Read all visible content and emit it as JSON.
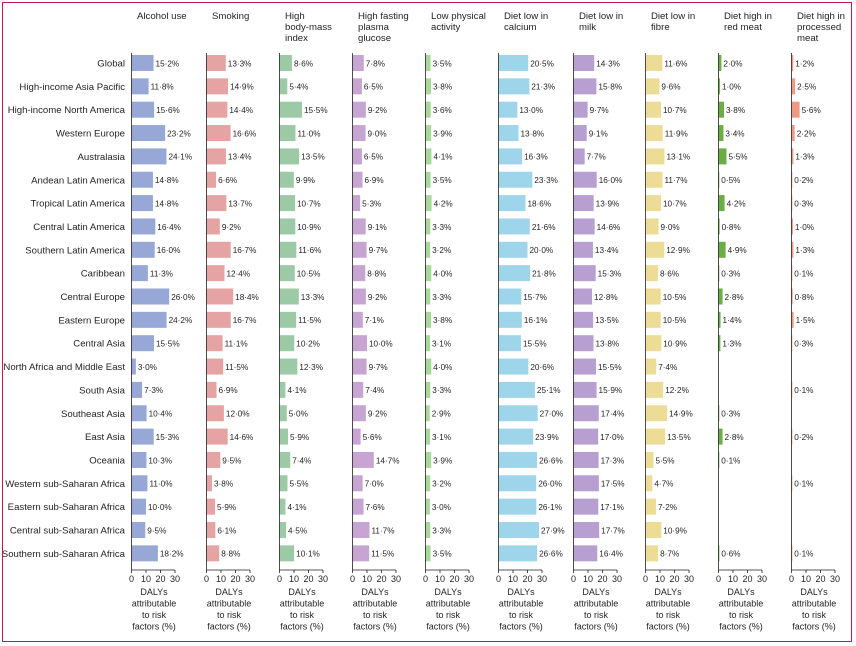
{
  "chart_data": {
    "type": "bar",
    "orientation": "horizontal",
    "layout": "small-multiples",
    "categories": [
      "Global",
      "High-income Asia Pacific",
      "High-income North America",
      "Western Europe",
      "Australasia",
      "Andean Latin America",
      "Tropical Latin America",
      "Central Latin America",
      "Southern Latin America",
      "Caribbean",
      "Central Europe",
      "Eastern Europe",
      "Central Asia",
      "North Africa and Middle East",
      "South Asia",
      "Southeast Asia",
      "East Asia",
      "Oceania",
      "Western sub-Saharan Africa",
      "Eastern sub-Saharan Africa",
      "Central sub-Saharan Africa",
      "Southern sub-Saharan Africa"
    ],
    "xlim": [
      0,
      30
    ],
    "xticks": [
      "0",
      "10",
      "20",
      "30"
    ],
    "xlabel": [
      "DALYs",
      "attributable",
      "to risk",
      "factors (%)"
    ],
    "series": [
      {
        "name": "Alcohol use",
        "title_lines": [
          "Alcohol use"
        ],
        "color": "#97a8d6",
        "values": [
          15.2,
          11.8,
          15.6,
          23.2,
          24.1,
          14.8,
          14.8,
          16.4,
          16.0,
          11.3,
          26.0,
          24.2,
          15.5,
          3.0,
          7.3,
          10.4,
          15.3,
          10.3,
          11.0,
          10.0,
          9.5,
          18.2
        ],
        "labels": [
          "15·2%",
          "11·8%",
          "15·6%",
          "23·2%",
          "24·1%",
          "14·8%",
          "14·8%",
          "16·4%",
          "16·0%",
          "11·3%",
          "26·0%",
          "24·2%",
          "15·5%",
          "3·0%",
          "7·3%",
          "10·4%",
          "15·3%",
          "10·3%",
          "11·0%",
          "10·0%",
          "9·5%",
          "18·2%"
        ]
      },
      {
        "name": "Smoking",
        "title_lines": [
          "Smoking"
        ],
        "color": "#e6a3a3",
        "values": [
          13.3,
          14.9,
          14.4,
          16.6,
          13.4,
          6.6,
          13.7,
          9.2,
          16.7,
          12.4,
          18.4,
          16.7,
          11.1,
          11.5,
          6.9,
          12.0,
          14.6,
          9.5,
          3.8,
          5.9,
          6.1,
          8.8
        ],
        "labels": [
          "13·3%",
          "14·9%",
          "14·4%",
          "16·6%",
          "13·4%",
          "6·6%",
          "13·7%",
          "9·2%",
          "16·7%",
          "12·4%",
          "18·4%",
          "16·7%",
          "11·1%",
          "11·5%",
          "6·9%",
          "12·0%",
          "14·6%",
          "9·5%",
          "3·8%",
          "5·9%",
          "6·1%",
          "8·8%"
        ]
      },
      {
        "name": "High body-mass index",
        "title_lines": [
          "High",
          "body-mass",
          "index"
        ],
        "color": "#9dcaa6",
        "values": [
          8.6,
          5.4,
          15.5,
          11.0,
          13.5,
          9.9,
          10.7,
          10.9,
          11.6,
          10.5,
          13.3,
          11.5,
          10.2,
          12.3,
          4.1,
          5.0,
          5.9,
          7.4,
          5.5,
          4.1,
          4.5,
          10.1
        ],
        "labels": [
          "8·6%",
          "5·4%",
          "15·5%",
          "11·0%",
          "13·5%",
          "9·9%",
          "10·7%",
          "10·9%",
          "11·6%",
          "10·5%",
          "13·3%",
          "11·5%",
          "10·2%",
          "12·3%",
          "4·1%",
          "5·0%",
          "5·9%",
          "7·4%",
          "5·5%",
          "4·1%",
          "4·5%",
          "10·1%"
        ]
      },
      {
        "name": "High fasting plasma glucose",
        "title_lines": [
          "High fasting",
          "plasma",
          "glucose"
        ],
        "color": "#c7a5d3",
        "values": [
          7.8,
          6.5,
          9.2,
          9.0,
          6.5,
          6.9,
          5.3,
          9.1,
          9.7,
          8.8,
          9.2,
          7.1,
          10.0,
          9.7,
          7.4,
          9.2,
          5.6,
          14.7,
          7.0,
          7.6,
          11.7,
          11.5
        ],
        "labels": [
          "7·8%",
          "6·5%",
          "9·2%",
          "9·0%",
          "6·5%",
          "6·9%",
          "5·3%",
          "9·1%",
          "9·7%",
          "8·8%",
          "9·2%",
          "7·1%",
          "10·0%",
          "9·7%",
          "7·4%",
          "9·2%",
          "5·6%",
          "14·7%",
          "7·0%",
          "7·6%",
          "11·7%",
          "11·5%"
        ]
      },
      {
        "name": "Low physical activity",
        "title_lines": [
          "Low physical",
          "activity"
        ],
        "color": "#a9d99a",
        "values": [
          3.5,
          3.8,
          3.6,
          3.9,
          4.1,
          3.5,
          4.2,
          3.3,
          3.2,
          4.0,
          3.3,
          3.8,
          3.1,
          4.0,
          3.3,
          2.9,
          3.1,
          3.9,
          3.2,
          3.0,
          3.3,
          3.5
        ],
        "labels": [
          "3·5%",
          "3·8%",
          "3·6%",
          "3·9%",
          "4·1%",
          "3·5%",
          "4·2%",
          "3·3%",
          "3·2%",
          "4·0%",
          "3·3%",
          "3·8%",
          "3·1%",
          "4·0%",
          "3·3%",
          "2·9%",
          "3·1%",
          "3·9%",
          "3·2%",
          "3·0%",
          "3·3%",
          "3·5%"
        ]
      },
      {
        "name": "Diet low in calcium",
        "title_lines": [
          "Diet low in",
          "calcium"
        ],
        "color": "#9fd5ea",
        "values": [
          20.5,
          21.3,
          13.0,
          13.8,
          16.3,
          23.3,
          18.6,
          21.6,
          20.0,
          21.8,
          15.7,
          16.1,
          15.5,
          20.6,
          25.1,
          27.0,
          23.9,
          26.6,
          26.0,
          26.1,
          27.9,
          26.6
        ],
        "labels": [
          "20·5%",
          "21·3%",
          "13·0%",
          "13·8%",
          "16·3%",
          "23·3%",
          "18·6%",
          "21·6%",
          "20·0%",
          "21·8%",
          "15·7%",
          "16·1%",
          "15·5%",
          "20·6%",
          "25·1%",
          "27·0%",
          "23·9%",
          "26·6%",
          "26·0%",
          "26·1%",
          "27·9%",
          "26·6%"
        ]
      },
      {
        "name": "Diet low in milk",
        "title_lines": [
          "Diet low in",
          "milk"
        ],
        "color": "#b79fd2",
        "values": [
          14.3,
          15.8,
          9.7,
          9.1,
          7.7,
          16.0,
          13.9,
          14.6,
          13.4,
          15.3,
          12.8,
          13.5,
          13.8,
          15.5,
          15.9,
          17.4,
          17.0,
          17.3,
          17.5,
          17.1,
          17.7,
          16.4
        ],
        "labels": [
          "14·3%",
          "15·8%",
          "9·7%",
          "9·1%",
          "7·7%",
          "16·0%",
          "13·9%",
          "14·6%",
          "13·4%",
          "15·3%",
          "12·8%",
          "13·5%",
          "13·8%",
          "15·5%",
          "15·9%",
          "17·4%",
          "17·0%",
          "17·3%",
          "17·5%",
          "17·1%",
          "17·7%",
          "16·4%"
        ]
      },
      {
        "name": "Diet low in fibre",
        "title_lines": [
          "Diet low in",
          "fibre"
        ],
        "color": "#ecdc96",
        "values": [
          11.6,
          9.6,
          10.7,
          11.9,
          13.1,
          11.7,
          10.7,
          9.0,
          12.9,
          8.6,
          10.5,
          10.5,
          10.9,
          7.4,
          12.2,
          14.9,
          13.5,
          5.5,
          4.7,
          7.2,
          10.9,
          8.7
        ],
        "labels": [
          "11·6%",
          "9·6%",
          "10·7%",
          "11·9%",
          "13·1%",
          "11·7%",
          "10·7%",
          "9·0%",
          "12·9%",
          "8·6%",
          "10·5%",
          "10·5%",
          "10·9%",
          "7·4%",
          "12·2%",
          "14·9%",
          "13·5%",
          "5·5%",
          "4·7%",
          "7·2%",
          "10·9%",
          "8·7%"
        ]
      },
      {
        "name": "Diet high in red meat",
        "title_lines": [
          "Diet high in",
          "red meat"
        ],
        "color": "#6aaf43",
        "values": [
          2.0,
          1.0,
          3.8,
          3.4,
          5.5,
          0.5,
          4.2,
          0.8,
          4.9,
          0.3,
          2.8,
          1.4,
          1.3,
          null,
          null,
          0.3,
          2.8,
          0.1,
          null,
          null,
          null,
          0.6
        ],
        "labels": [
          "2·0%",
          "1·0%",
          "3·8%",
          "3·4%",
          "5·5%",
          "0·5%",
          "4·2%",
          "0·8%",
          "4·9%",
          "0·3%",
          "2·8%",
          "1·4%",
          "1·3%",
          null,
          null,
          "0·3%",
          "2·8%",
          "0·1%",
          null,
          null,
          null,
          "0·6%"
        ]
      },
      {
        "name": "Diet high in processed meat",
        "title_lines": [
          "Diet high in",
          "processed",
          "meat"
        ],
        "color": "#ef9a85",
        "values": [
          1.2,
          2.5,
          5.6,
          2.2,
          1.3,
          0.2,
          0.3,
          1.0,
          1.3,
          0.1,
          0.8,
          1.5,
          0.3,
          null,
          0.1,
          null,
          0.2,
          null,
          0.1,
          null,
          null,
          0.1
        ],
        "labels": [
          "1·2%",
          "2·5%",
          "5·6%",
          "2·2%",
          "1·3%",
          "0·2%",
          "0·3%",
          "1·0%",
          "1·3%",
          "0·1%",
          "0·8%",
          "1·5%",
          "0·3%",
          null,
          "0·1%",
          null,
          "0·2%",
          null,
          "0·1%",
          null,
          null,
          "0·1%"
        ]
      }
    ]
  }
}
